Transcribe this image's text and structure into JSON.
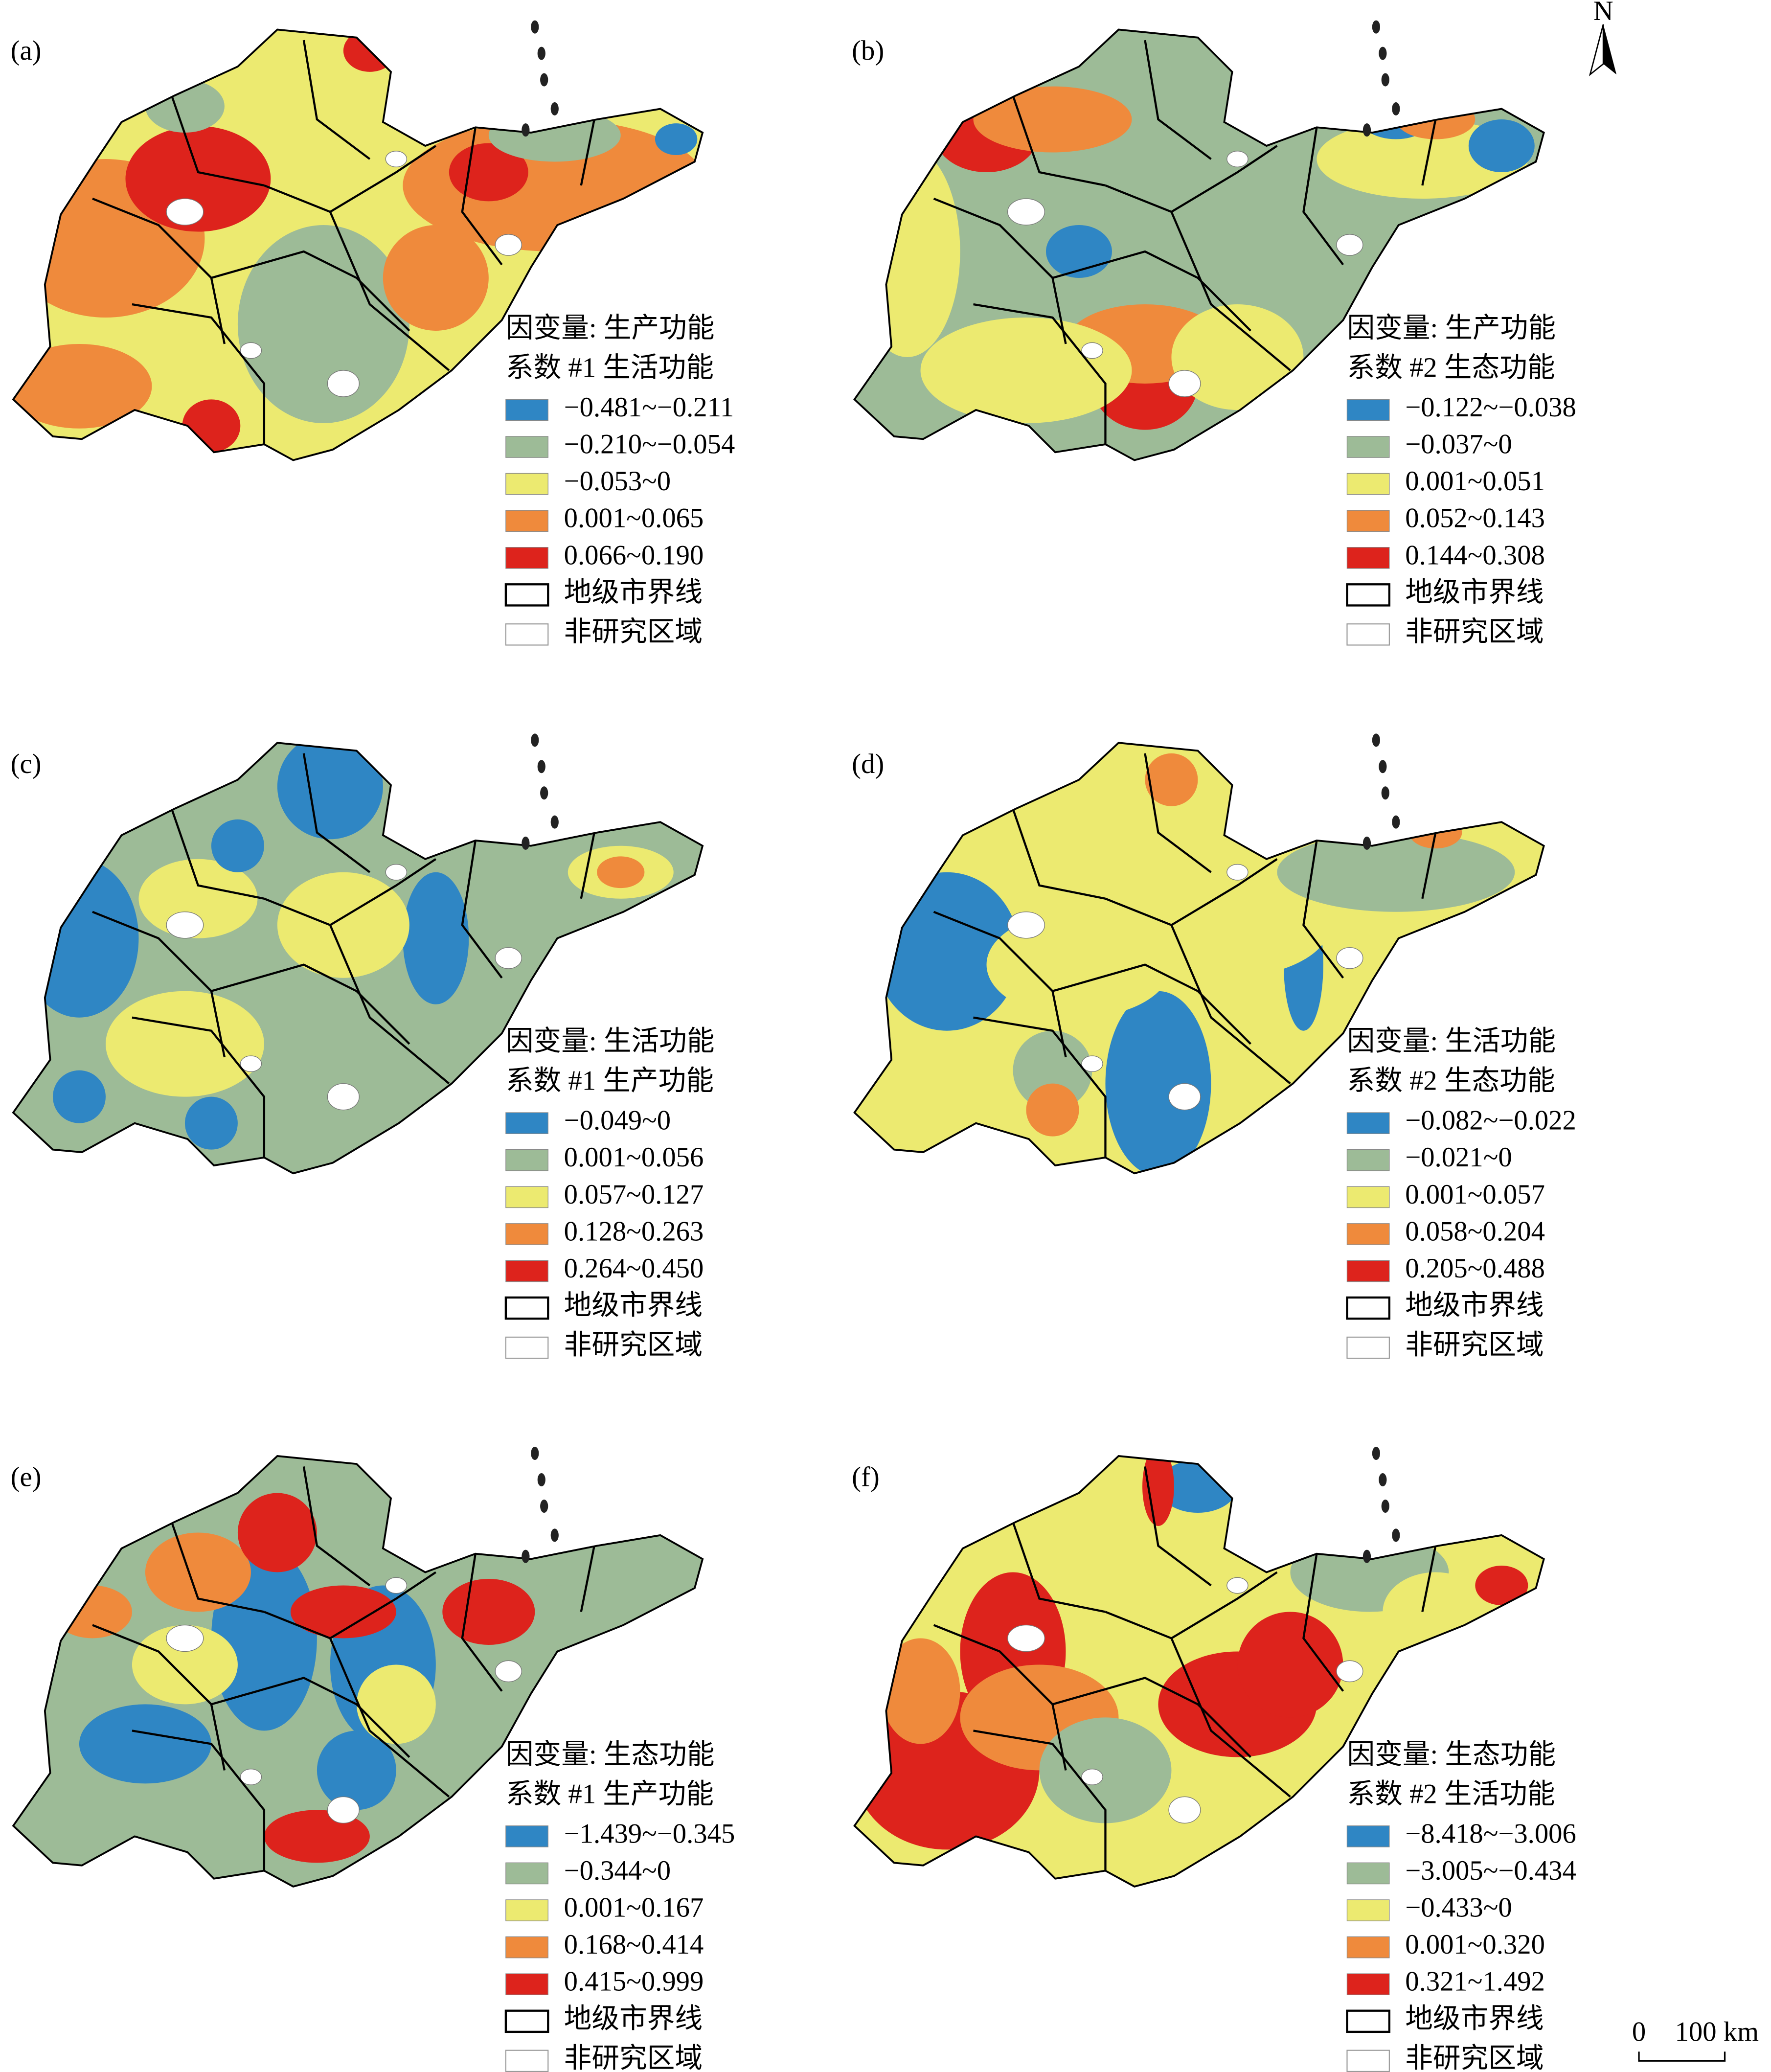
{
  "panels": [
    {
      "label": "(a)",
      "dependent": "因变量: 生产功能",
      "coefficient": "系数 #1 生活功能",
      "classes": [
        "−0.481~−0.211",
        "−0.210~−0.054",
        "−0.053~0",
        "0.001~0.065",
        "0.066~0.190"
      ],
      "boundary": "地级市界线",
      "non_study": "非研究区域"
    },
    {
      "label": "(b)",
      "dependent": "因变量: 生产功能",
      "coefficient": "系数 #2 生态功能",
      "classes": [
        "−0.122~−0.038",
        "−0.037~0",
        "0.001~0.051",
        "0.052~0.143",
        "0.144~0.308"
      ],
      "boundary": "地级市界线",
      "non_study": "非研究区域"
    },
    {
      "label": "(c)",
      "dependent": "因变量: 生活功能",
      "coefficient": "系数 #1 生产功能",
      "classes": [
        "−0.049~0",
        "0.001~0.056",
        "0.057~0.127",
        "0.128~0.263",
        "0.264~0.450"
      ],
      "boundary": "地级市界线",
      "non_study": "非研究区域"
    },
    {
      "label": "(d)",
      "dependent": "因变量: 生活功能",
      "coefficient": "系数 #2 生态功能",
      "classes": [
        "−0.082~−0.022",
        "−0.021~0",
        "0.001~0.057",
        "0.058~0.204",
        "0.205~0.488"
      ],
      "boundary": "地级市界线",
      "non_study": "非研究区域"
    },
    {
      "label": "(e)",
      "dependent": "因变量: 生态功能",
      "coefficient": "系数 #1 生产功能",
      "classes": [
        "−1.439~−0.345",
        "−0.344~0",
        "0.001~0.167",
        "0.168~0.414",
        "0.415~0.999"
      ],
      "boundary": "地级市界线",
      "non_study": "非研究区域"
    },
    {
      "label": "(f)",
      "dependent": "因变量: 生态功能",
      "coefficient": "系数 #2 生活功能",
      "classes": [
        "−8.418~−3.006",
        "−3.005~−0.434",
        "−0.433~0",
        "0.001~0.320",
        "0.321~1.492"
      ],
      "boundary": "地级市界线",
      "non_study": "非研究区域"
    }
  ],
  "class_colors": [
    "#2f86c4",
    "#9dbb97",
    "#ecea70",
    "#ef8a3c",
    "#dd231c"
  ],
  "north": "N",
  "scale_bar": {
    "start": "0",
    "end": "100 km"
  }
}
